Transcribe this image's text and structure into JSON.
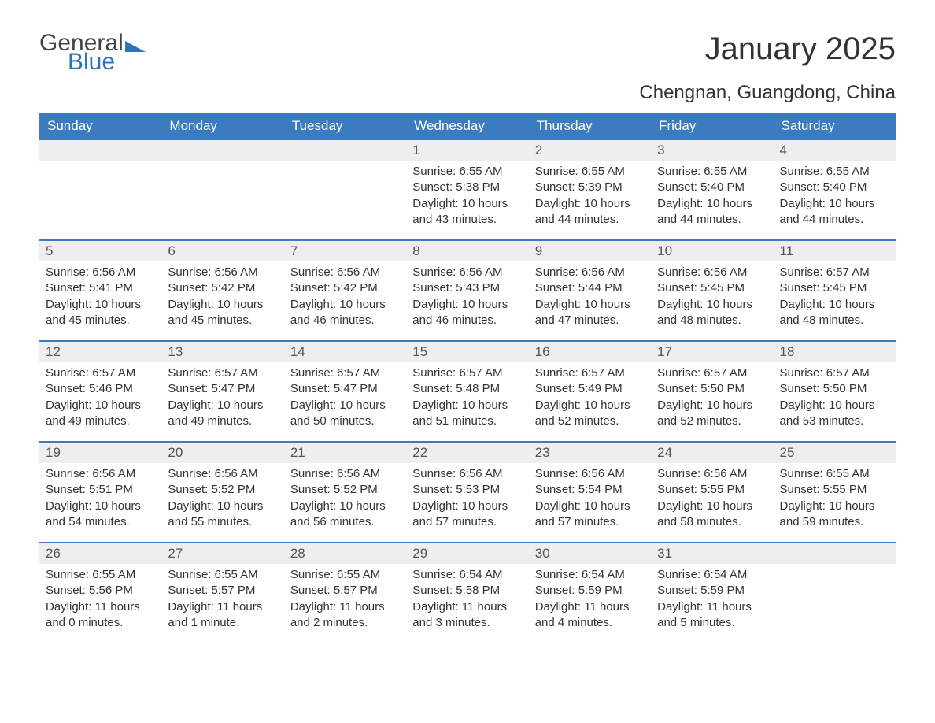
{
  "brand": {
    "part1": "General",
    "part2": "Blue"
  },
  "title": "January 2025",
  "location": "Chengnan, Guangdong, China",
  "colors": {
    "header_bg": "#3b7bbf",
    "header_text": "#ffffff",
    "daynum_bg": "#eeeeee",
    "row_border": "#3b7bbf",
    "body_text": "#333333",
    "page_bg": "#ffffff",
    "brand_blue": "#2d74b8"
  },
  "typography": {
    "title_fontsize": 40,
    "location_fontsize": 24,
    "header_fontsize": 17,
    "daynum_fontsize": 17,
    "body_fontsize": 15
  },
  "calendar": {
    "type": "table",
    "columns": [
      "Sunday",
      "Monday",
      "Tuesday",
      "Wednesday",
      "Thursday",
      "Friday",
      "Saturday"
    ],
    "weeks": [
      [
        null,
        null,
        null,
        {
          "day": "1",
          "sunrise": "Sunrise: 6:55 AM",
          "sunset": "Sunset: 5:38 PM",
          "daylight": "Daylight: 10 hours and 43 minutes."
        },
        {
          "day": "2",
          "sunrise": "Sunrise: 6:55 AM",
          "sunset": "Sunset: 5:39 PM",
          "daylight": "Daylight: 10 hours and 44 minutes."
        },
        {
          "day": "3",
          "sunrise": "Sunrise: 6:55 AM",
          "sunset": "Sunset: 5:40 PM",
          "daylight": "Daylight: 10 hours and 44 minutes."
        },
        {
          "day": "4",
          "sunrise": "Sunrise: 6:55 AM",
          "sunset": "Sunset: 5:40 PM",
          "daylight": "Daylight: 10 hours and 44 minutes."
        }
      ],
      [
        {
          "day": "5",
          "sunrise": "Sunrise: 6:56 AM",
          "sunset": "Sunset: 5:41 PM",
          "daylight": "Daylight: 10 hours and 45 minutes."
        },
        {
          "day": "6",
          "sunrise": "Sunrise: 6:56 AM",
          "sunset": "Sunset: 5:42 PM",
          "daylight": "Daylight: 10 hours and 45 minutes."
        },
        {
          "day": "7",
          "sunrise": "Sunrise: 6:56 AM",
          "sunset": "Sunset: 5:42 PM",
          "daylight": "Daylight: 10 hours and 46 minutes."
        },
        {
          "day": "8",
          "sunrise": "Sunrise: 6:56 AM",
          "sunset": "Sunset: 5:43 PM",
          "daylight": "Daylight: 10 hours and 46 minutes."
        },
        {
          "day": "9",
          "sunrise": "Sunrise: 6:56 AM",
          "sunset": "Sunset: 5:44 PM",
          "daylight": "Daylight: 10 hours and 47 minutes."
        },
        {
          "day": "10",
          "sunrise": "Sunrise: 6:56 AM",
          "sunset": "Sunset: 5:45 PM",
          "daylight": "Daylight: 10 hours and 48 minutes."
        },
        {
          "day": "11",
          "sunrise": "Sunrise: 6:57 AM",
          "sunset": "Sunset: 5:45 PM",
          "daylight": "Daylight: 10 hours and 48 minutes."
        }
      ],
      [
        {
          "day": "12",
          "sunrise": "Sunrise: 6:57 AM",
          "sunset": "Sunset: 5:46 PM",
          "daylight": "Daylight: 10 hours and 49 minutes."
        },
        {
          "day": "13",
          "sunrise": "Sunrise: 6:57 AM",
          "sunset": "Sunset: 5:47 PM",
          "daylight": "Daylight: 10 hours and 49 minutes."
        },
        {
          "day": "14",
          "sunrise": "Sunrise: 6:57 AM",
          "sunset": "Sunset: 5:47 PM",
          "daylight": "Daylight: 10 hours and 50 minutes."
        },
        {
          "day": "15",
          "sunrise": "Sunrise: 6:57 AM",
          "sunset": "Sunset: 5:48 PM",
          "daylight": "Daylight: 10 hours and 51 minutes."
        },
        {
          "day": "16",
          "sunrise": "Sunrise: 6:57 AM",
          "sunset": "Sunset: 5:49 PM",
          "daylight": "Daylight: 10 hours and 52 minutes."
        },
        {
          "day": "17",
          "sunrise": "Sunrise: 6:57 AM",
          "sunset": "Sunset: 5:50 PM",
          "daylight": "Daylight: 10 hours and 52 minutes."
        },
        {
          "day": "18",
          "sunrise": "Sunrise: 6:57 AM",
          "sunset": "Sunset: 5:50 PM",
          "daylight": "Daylight: 10 hours and 53 minutes."
        }
      ],
      [
        {
          "day": "19",
          "sunrise": "Sunrise: 6:56 AM",
          "sunset": "Sunset: 5:51 PM",
          "daylight": "Daylight: 10 hours and 54 minutes."
        },
        {
          "day": "20",
          "sunrise": "Sunrise: 6:56 AM",
          "sunset": "Sunset: 5:52 PM",
          "daylight": "Daylight: 10 hours and 55 minutes."
        },
        {
          "day": "21",
          "sunrise": "Sunrise: 6:56 AM",
          "sunset": "Sunset: 5:52 PM",
          "daylight": "Daylight: 10 hours and 56 minutes."
        },
        {
          "day": "22",
          "sunrise": "Sunrise: 6:56 AM",
          "sunset": "Sunset: 5:53 PM",
          "daylight": "Daylight: 10 hours and 57 minutes."
        },
        {
          "day": "23",
          "sunrise": "Sunrise: 6:56 AM",
          "sunset": "Sunset: 5:54 PM",
          "daylight": "Daylight: 10 hours and 57 minutes."
        },
        {
          "day": "24",
          "sunrise": "Sunrise: 6:56 AM",
          "sunset": "Sunset: 5:55 PM",
          "daylight": "Daylight: 10 hours and 58 minutes."
        },
        {
          "day": "25",
          "sunrise": "Sunrise: 6:55 AM",
          "sunset": "Sunset: 5:55 PM",
          "daylight": "Daylight: 10 hours and 59 minutes."
        }
      ],
      [
        {
          "day": "26",
          "sunrise": "Sunrise: 6:55 AM",
          "sunset": "Sunset: 5:56 PM",
          "daylight": "Daylight: 11 hours and 0 minutes."
        },
        {
          "day": "27",
          "sunrise": "Sunrise: 6:55 AM",
          "sunset": "Sunset: 5:57 PM",
          "daylight": "Daylight: 11 hours and 1 minute."
        },
        {
          "day": "28",
          "sunrise": "Sunrise: 6:55 AM",
          "sunset": "Sunset: 5:57 PM",
          "daylight": "Daylight: 11 hours and 2 minutes."
        },
        {
          "day": "29",
          "sunrise": "Sunrise: 6:54 AM",
          "sunset": "Sunset: 5:58 PM",
          "daylight": "Daylight: 11 hours and 3 minutes."
        },
        {
          "day": "30",
          "sunrise": "Sunrise: 6:54 AM",
          "sunset": "Sunset: 5:59 PM",
          "daylight": "Daylight: 11 hours and 4 minutes."
        },
        {
          "day": "31",
          "sunrise": "Sunrise: 6:54 AM",
          "sunset": "Sunset: 5:59 PM",
          "daylight": "Daylight: 11 hours and 5 minutes."
        },
        null
      ]
    ]
  }
}
